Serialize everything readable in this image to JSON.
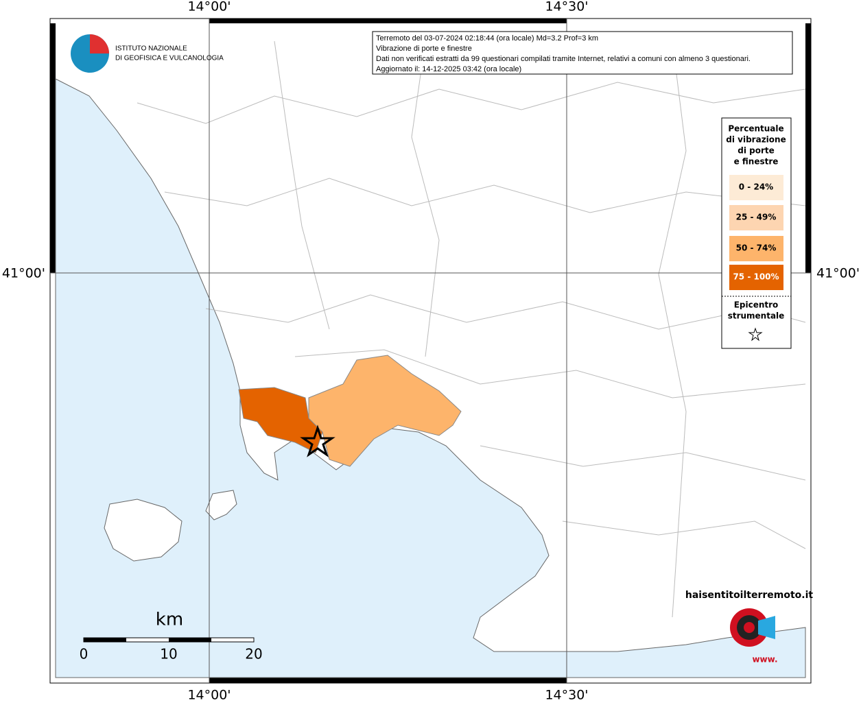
{
  "map": {
    "graticule": {
      "lon_labels": [
        "14°00'",
        "14°30'"
      ],
      "lat_labels": [
        "41°00'"
      ]
    },
    "logo": {
      "line1": "ISTITUTO NAZIONALE",
      "line2": "DI GEOFISICA E VULCANOLOGIA"
    },
    "info": [
      "Terremoto del 03-07-2024 02:18:44 (ora locale) Md=3.2 Prof=3 km",
      "Vibrazione di porte e finestre",
      "Dati non verificati estratti da 99 questionari compilati tramite Internet, relativi a comuni con almeno 3 questionari.",
      "Aggiornato il: 14-12-2025 03:42 (ora locale)"
    ],
    "legend": {
      "title": [
        "Percentuale",
        "di vibrazione",
        "di porte",
        "e finestre"
      ],
      "items": [
        {
          "label": "0 - 24%",
          "color": "#fdebd6"
        },
        {
          "label": "25 - 49%",
          "color": "#fdd5b1"
        },
        {
          "label": "50 - 74%",
          "color": "#fdb46b"
        },
        {
          "label": "75 - 100%",
          "color": "#e46300"
        }
      ],
      "epicenter": [
        "Epicentro",
        "strumentale"
      ]
    },
    "scale": {
      "unit": "km",
      "labels": [
        "0",
        "10",
        "20"
      ]
    },
    "site": {
      "name": "haisentitoilterremoto.it",
      "prefix": "www."
    }
  }
}
